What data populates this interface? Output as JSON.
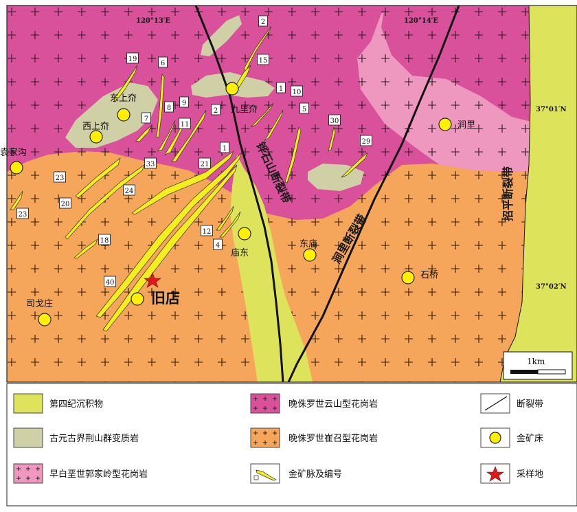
{
  "coords": {
    "lon_left": "120°13′E",
    "lon_right": "120°14′E",
    "lat_upper": "37°01′N",
    "lat_lower": "37°02′N"
  },
  "colors": {
    "quaternary": "#dde35a",
    "metamorphic": "#cfd0a6",
    "guojialing": "#ee97bf",
    "yunshan": "#d9519b",
    "cuizhao": "#f5a65a",
    "vein": "#f5ee1e",
    "deposit": "#ffef00",
    "sample_star": "#e01818",
    "fault": "#111111"
  },
  "places": {
    "dongshangjie": "东上夼",
    "xishangjie": "西上夼",
    "jiulijie": "九里夼",
    "jianli": "涧里",
    "yuanjiagou": "袁家沟",
    "miaodong": "庙东",
    "donggmiao": "东庙",
    "shiqiao": "石桥",
    "siyizhuang": "司戈庄",
    "jiudian": "旧店"
  },
  "faults": {
    "shishan": "铧石山断裂带",
    "jianli": "涧里断裂带",
    "zhaoping": "招平断裂带"
  },
  "vein_numbers": [
    "2",
    "15",
    "1",
    "10",
    "5",
    "30",
    "29",
    "19",
    "6",
    "8",
    "9",
    "11",
    "7",
    "2",
    "33",
    "21",
    "1",
    "23",
    "20",
    "24",
    "23",
    "18",
    "40",
    "12",
    "4"
  ],
  "scale": {
    "label": "1km"
  },
  "legend": {
    "quaternary": "第四纪沉积物",
    "metamorphic": "古元古界荆山群变质岩",
    "guojialing": "早白垩世郭家岭型花岗岩",
    "yunshan": "晚侏罗世云山型花岗岩",
    "cuizhao": "晚侏罗世崔召型花岗岩",
    "vein": "金矿脉及编号",
    "fault": "断裂带",
    "deposit": "金矿床",
    "sample": "采样地"
  }
}
